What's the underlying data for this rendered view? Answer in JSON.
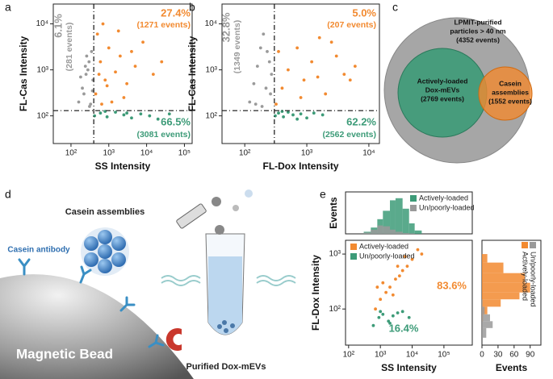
{
  "panel_labels": [
    "a",
    "b",
    "c",
    "d",
    "e"
  ],
  "chart_data": [
    {
      "type": "scatter",
      "xlabel": "SS Intensity",
      "ylabel": "FL-Cas Intensity",
      "xlog": true,
      "ylog": true,
      "xlim": [
        34,
        160000
      ],
      "ylim": [
        25,
        27000
      ],
      "xticks": [
        {
          "value": 100,
          "label": "10²"
        },
        {
          "value": 1000,
          "label": "10³"
        },
        {
          "value": 10000,
          "label": "10⁴"
        },
        {
          "value": 100000,
          "label": "10⁵"
        }
      ],
      "yticks": [
        {
          "value": 100,
          "label": "10²"
        },
        {
          "value": 1000,
          "label": "10³"
        },
        {
          "value": 10000,
          "label": "10⁴"
        }
      ],
      "gates": {
        "x": 400,
        "y": 130
      },
      "series": [
        {
          "color": "#9a9a9a",
          "x": [
            160,
            200,
            250,
            300,
            350,
            380,
            220,
            280,
            330,
            180,
            260,
            370,
            310,
            240
          ],
          "y": [
            200,
            400,
            800,
            1500,
            2500,
            600,
            300,
            1000,
            180,
            700,
            2000,
            350,
            160,
            1200
          ]
        },
        {
          "color": "#f28a30",
          "x": [
            450,
            600,
            800,
            1000,
            1500,
            2000,
            3000,
            5000,
            8000,
            15000,
            500,
            700,
            1200,
            2500,
            4000,
            25000,
            900,
            650,
            1800,
            550
          ],
          "y": [
            300,
            1500,
            600,
            3000,
            900,
            2000,
            500,
            1200,
            4000,
            800,
            6000,
            10000,
            200,
            250,
            2500,
            1500,
            450,
            180,
            7000,
            800
          ]
        },
        {
          "color": "#3d9b78",
          "x": [
            420,
            600,
            900,
            1500,
            2500,
            4000,
            7000,
            12000,
            20000,
            40000,
            800,
            3000
          ],
          "y": [
            100,
            115,
            95,
            120,
            105,
            90,
            110,
            100,
            85,
            110,
            125,
            115
          ]
        }
      ],
      "annotations": [
        {
          "text": "6.1%",
          "sub": "(281 events)",
          "color": "#9a9a9a"
        },
        {
          "text": "27.4%",
          "sub": "(1271 events)",
          "color": "#f28a30"
        },
        {
          "text": "66.5%",
          "sub": "(3081 events)",
          "color": "#3d9b78"
        }
      ]
    },
    {
      "type": "scatter",
      "xlabel": "FL-Dox Intensity",
      "ylabel": "FL-Cas Intensity",
      "xlog": true,
      "ylog": true,
      "xlim": [
        43,
        14800
      ],
      "ylim": [
        25,
        27000
      ],
      "xticks": [
        {
          "value": 100,
          "label": "10²"
        },
        {
          "value": 1000,
          "label": "10³"
        },
        {
          "value": 10000,
          "label": "10⁴"
        }
      ],
      "yticks": [
        {
          "value": 100,
          "label": "10²"
        },
        {
          "value": 1000,
          "label": "10³"
        },
        {
          "value": 10000,
          "label": "10⁴"
        }
      ],
      "gates": {
        "x": 300,
        "y": 130
      },
      "series": [
        {
          "color": "#9a9a9a",
          "x": [
            120,
            140,
            160,
            180,
            200,
            220,
            250,
            270,
            150,
            230,
            190,
            260
          ],
          "y": [
            200,
            500,
            1200,
            3000,
            6000,
            400,
            1500,
            800,
            180,
            2500,
            160,
            300
          ]
        },
        {
          "color": "#f28a30",
          "x": [
            320,
            400,
            500,
            700,
            900,
            1200,
            1600,
            2000,
            3000,
            4000,
            6000,
            350,
            800,
            2500,
            1500,
            5000
          ],
          "y": [
            180,
            400,
            1000,
            3000,
            600,
            1500,
            5000,
            300,
            2000,
            800,
            1200,
            2500,
            250,
            4000,
            700,
            600
          ]
        },
        {
          "color": "#3d9b78",
          "x": [
            310,
            350,
            420,
            500,
            600,
            800,
            1000,
            1300,
            1800,
            400,
            700
          ],
          "y": [
            100,
            115,
            95,
            120,
            105,
            110,
            90,
            115,
            105,
            125,
            85
          ]
        }
      ],
      "annotations": [
        {
          "text": "32.8%",
          "sub": "(1349 events)",
          "color": "#9a9a9a"
        },
        {
          "text": "5.0%",
          "sub": "(207 events)",
          "color": "#f28a30"
        },
        {
          "text": "62.2%",
          "sub": "(2562 events)",
          "color": "#3d9b78"
        }
      ]
    },
    {
      "type": "scatter",
      "xlabel": "SS Intensity",
      "ylabel": "FL-Dox Intensity",
      "xlog": true,
      "ylog": true,
      "xlim": [
        80,
        780000
      ],
      "ylim": [
        22,
        1780
      ],
      "xticks": [
        {
          "value": 100,
          "label": "10²"
        },
        {
          "value": 1000,
          "label": "10³"
        },
        {
          "value": 10000,
          "label": "10⁴"
        },
        {
          "value": 100000,
          "label": "10⁵"
        }
      ],
      "yticks": [
        {
          "value": 100,
          "label": "10²"
        },
        {
          "value": 1000,
          "label": "10³"
        }
      ],
      "series": [
        {
          "name": "Actively-loaded",
          "color": "#f28a30",
          "x": [
            700,
            1000,
            1500,
            2000,
            3000,
            4000,
            5000,
            7000,
            10000,
            15000,
            1200,
            2500,
            6000,
            20000,
            800,
            3500
          ],
          "y": [
            100,
            150,
            200,
            250,
            350,
            400,
            500,
            600,
            800,
            1200,
            300,
            180,
            900,
            1000,
            250,
            600
          ]
        },
        {
          "name": "Un/poorly-loaded",
          "color": "#3d9b78",
          "x": [
            600,
            900,
            1200,
            1800,
            2500,
            3500,
            5000,
            8000,
            1000,
            2000
          ],
          "y": [
            50,
            70,
            80,
            60,
            75,
            85,
            90,
            70,
            90,
            55
          ]
        }
      ],
      "annotations": [
        {
          "text": "83.6%",
          "color": "#f28a30"
        },
        {
          "text": "16.4%",
          "color": "#3d9b78"
        }
      ]
    },
    {
      "type": "histogram",
      "ylabel": "Events",
      "xlog": true,
      "xlim": [
        80,
        780000
      ],
      "ylim": [
        0,
        100
      ],
      "bins": [
        300,
        500,
        800,
        1200,
        2000,
        3000,
        5000,
        8000,
        12000,
        20000
      ],
      "series": [
        {
          "name": "Actively-loaded",
          "color": "#3d9b78",
          "values": [
            5,
            15,
            35,
            55,
            80,
            85,
            60,
            25,
            8
          ]
        },
        {
          "name": "Un/poorly-loaded",
          "color": "#9a9a9a",
          "values": [
            3,
            10,
            20,
            18,
            10,
            5,
            2,
            1,
            0
          ]
        }
      ]
    },
    {
      "type": "histogram",
      "orientation": "horizontal",
      "xlabel": "Events",
      "ylog": true,
      "ylim": [
        22,
        1780
      ],
      "xlim": [
        0,
        110
      ],
      "xticks": [
        0,
        30,
        60,
        90
      ],
      "bins": [
        30,
        45,
        60,
        80,
        110,
        150,
        200,
        300,
        450,
        700,
        1000
      ],
      "series": [
        {
          "name": "Actively-loaded",
          "color": "#f28a30",
          "values": [
            0,
            0,
            2,
            10,
            35,
            70,
            90,
            80,
            40,
            10
          ]
        },
        {
          "name": "Un/poorly-loaded",
          "color": "#9a9a9a",
          "values": [
            8,
            20,
            15,
            5,
            1,
            0,
            0,
            0,
            0,
            0
          ]
        }
      ]
    }
  ],
  "venn": {
    "outer": [
      "LPMIT-purified",
      "particles > 40 nm",
      "(4352 events)"
    ],
    "left": [
      "Actively-loaded",
      "Dox-mEVs",
      "(2769 events)"
    ],
    "right": [
      "Casein",
      "assemblies",
      "(1552 events)"
    ]
  },
  "illustration": {
    "casein_assemblies": "Casein assemblies",
    "casein_antibody": "Casein antibody",
    "bead": "Magnetic Bead",
    "purified": "Purified Dox-mEVs"
  }
}
